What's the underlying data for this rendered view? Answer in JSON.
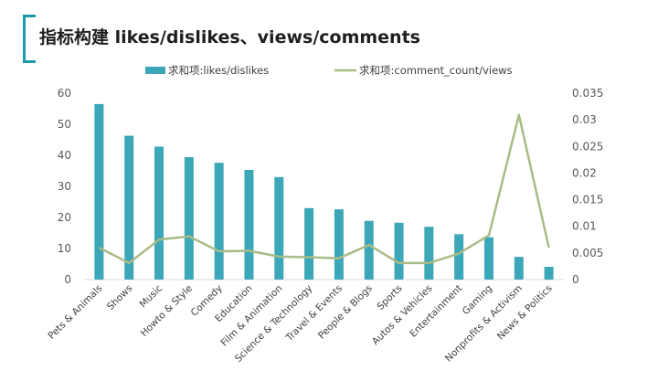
{
  "slide": {
    "title": "指标构建 likes/dislikes、views/comments",
    "accent_color": "#1a9aa9"
  },
  "chart_data": {
    "type": "bar",
    "title": "",
    "categories": [
      "Pets & Animals",
      "Shows",
      "Music",
      "Howto & Style",
      "Comedy",
      "Education",
      "Film & Animation",
      "Science & Technology",
      "Travel & Events",
      "People & Blogs",
      "Sports",
      "Autos & Vehicles",
      "Entertainment",
      "Gaming",
      "Nonprofits & Activism",
      "News & Politics"
    ],
    "series": [
      {
        "name": "求和项:likes/dislikes",
        "type": "bar",
        "axis": "left",
        "color": "#3ba7b8",
        "values": [
          56.5,
          46.3,
          42.8,
          39.4,
          37.6,
          35.3,
          33.0,
          23.0,
          22.6,
          18.9,
          18.3,
          17.0,
          14.6,
          13.6,
          7.3,
          4.1
        ]
      },
      {
        "name": "求和项:comment_count/views",
        "type": "line",
        "axis": "right",
        "color": "#a9bb86",
        "values": [
          0.006,
          0.0031,
          0.0075,
          0.0081,
          0.0053,
          0.0054,
          0.0043,
          0.0042,
          0.004,
          0.0065,
          0.0031,
          0.0031,
          0.0049,
          0.0083,
          0.0309,
          0.006
        ]
      }
    ],
    "y_left": {
      "min": 0,
      "max": 60,
      "ticks": [
        "0",
        "10",
        "20",
        "30",
        "40",
        "50",
        "60"
      ]
    },
    "y_right": {
      "min": 0,
      "max": 0.035,
      "ticks": [
        "0",
        "0.005",
        "0.01",
        "0.015",
        "0.02",
        "0.025",
        "0.03",
        "0.035"
      ]
    },
    "legend_position": "top",
    "grid": false
  }
}
